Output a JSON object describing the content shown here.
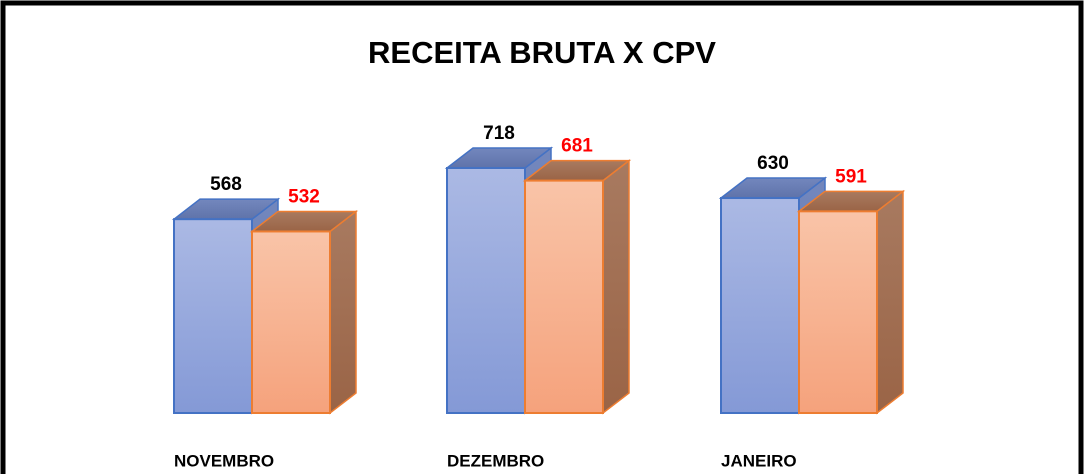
{
  "chart_data": {
    "type": "bar3d",
    "title": "RECEITA BRUTA X CPV",
    "categories": [
      "NOVEMBRO",
      "DEZEMBRO",
      "JANEIRO"
    ],
    "series": [
      {
        "color": "#4472c4",
        "label_color": "#000000",
        "values": [
          568,
          718,
          630
        ]
      },
      {
        "color": "#ed7d31",
        "label_color": "#ff0000",
        "values": [
          532,
          681,
          591
        ]
      }
    ]
  }
}
